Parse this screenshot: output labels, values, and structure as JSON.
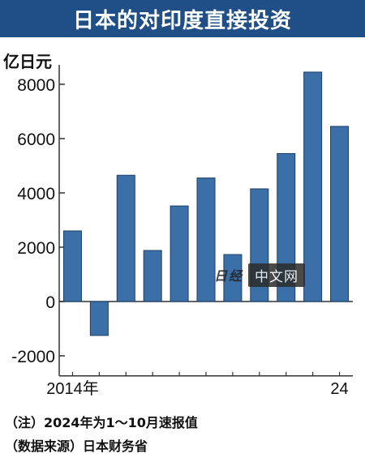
{
  "header": {
    "title": "日本的对印度直接投资"
  },
  "unit_label": "亿日元",
  "notes": {
    "note1": "（注）2024年为1～10月速报值",
    "note2": "（数据来源）日本财务省"
  },
  "watermark": {
    "logo": "日经",
    "text": "中文网"
  },
  "colors": {
    "bar": "#3b6fa7",
    "bar_edge": "#1f3f66",
    "title_bg": "#1f4f86"
  },
  "chart_data": {
    "type": "bar",
    "title": "日本的对印度直接投资",
    "ylabel": "亿日元",
    "categories": [
      "2014年",
      "",
      "",
      "",
      "",
      "",
      "",
      "",
      "",
      "",
      "24"
    ],
    "x": [
      2014,
      2015,
      2016,
      2017,
      2018,
      2019,
      2020,
      2021,
      2022,
      2023,
      2024
    ],
    "values": [
      2600,
      -1250,
      4650,
      1880,
      3520,
      4550,
      1730,
      4150,
      5450,
      8450,
      6450
    ],
    "ylim": [
      -2500,
      9000
    ],
    "yticks": [
      -2000,
      0,
      2000,
      4000,
      6000,
      8000
    ],
    "grid": false
  }
}
